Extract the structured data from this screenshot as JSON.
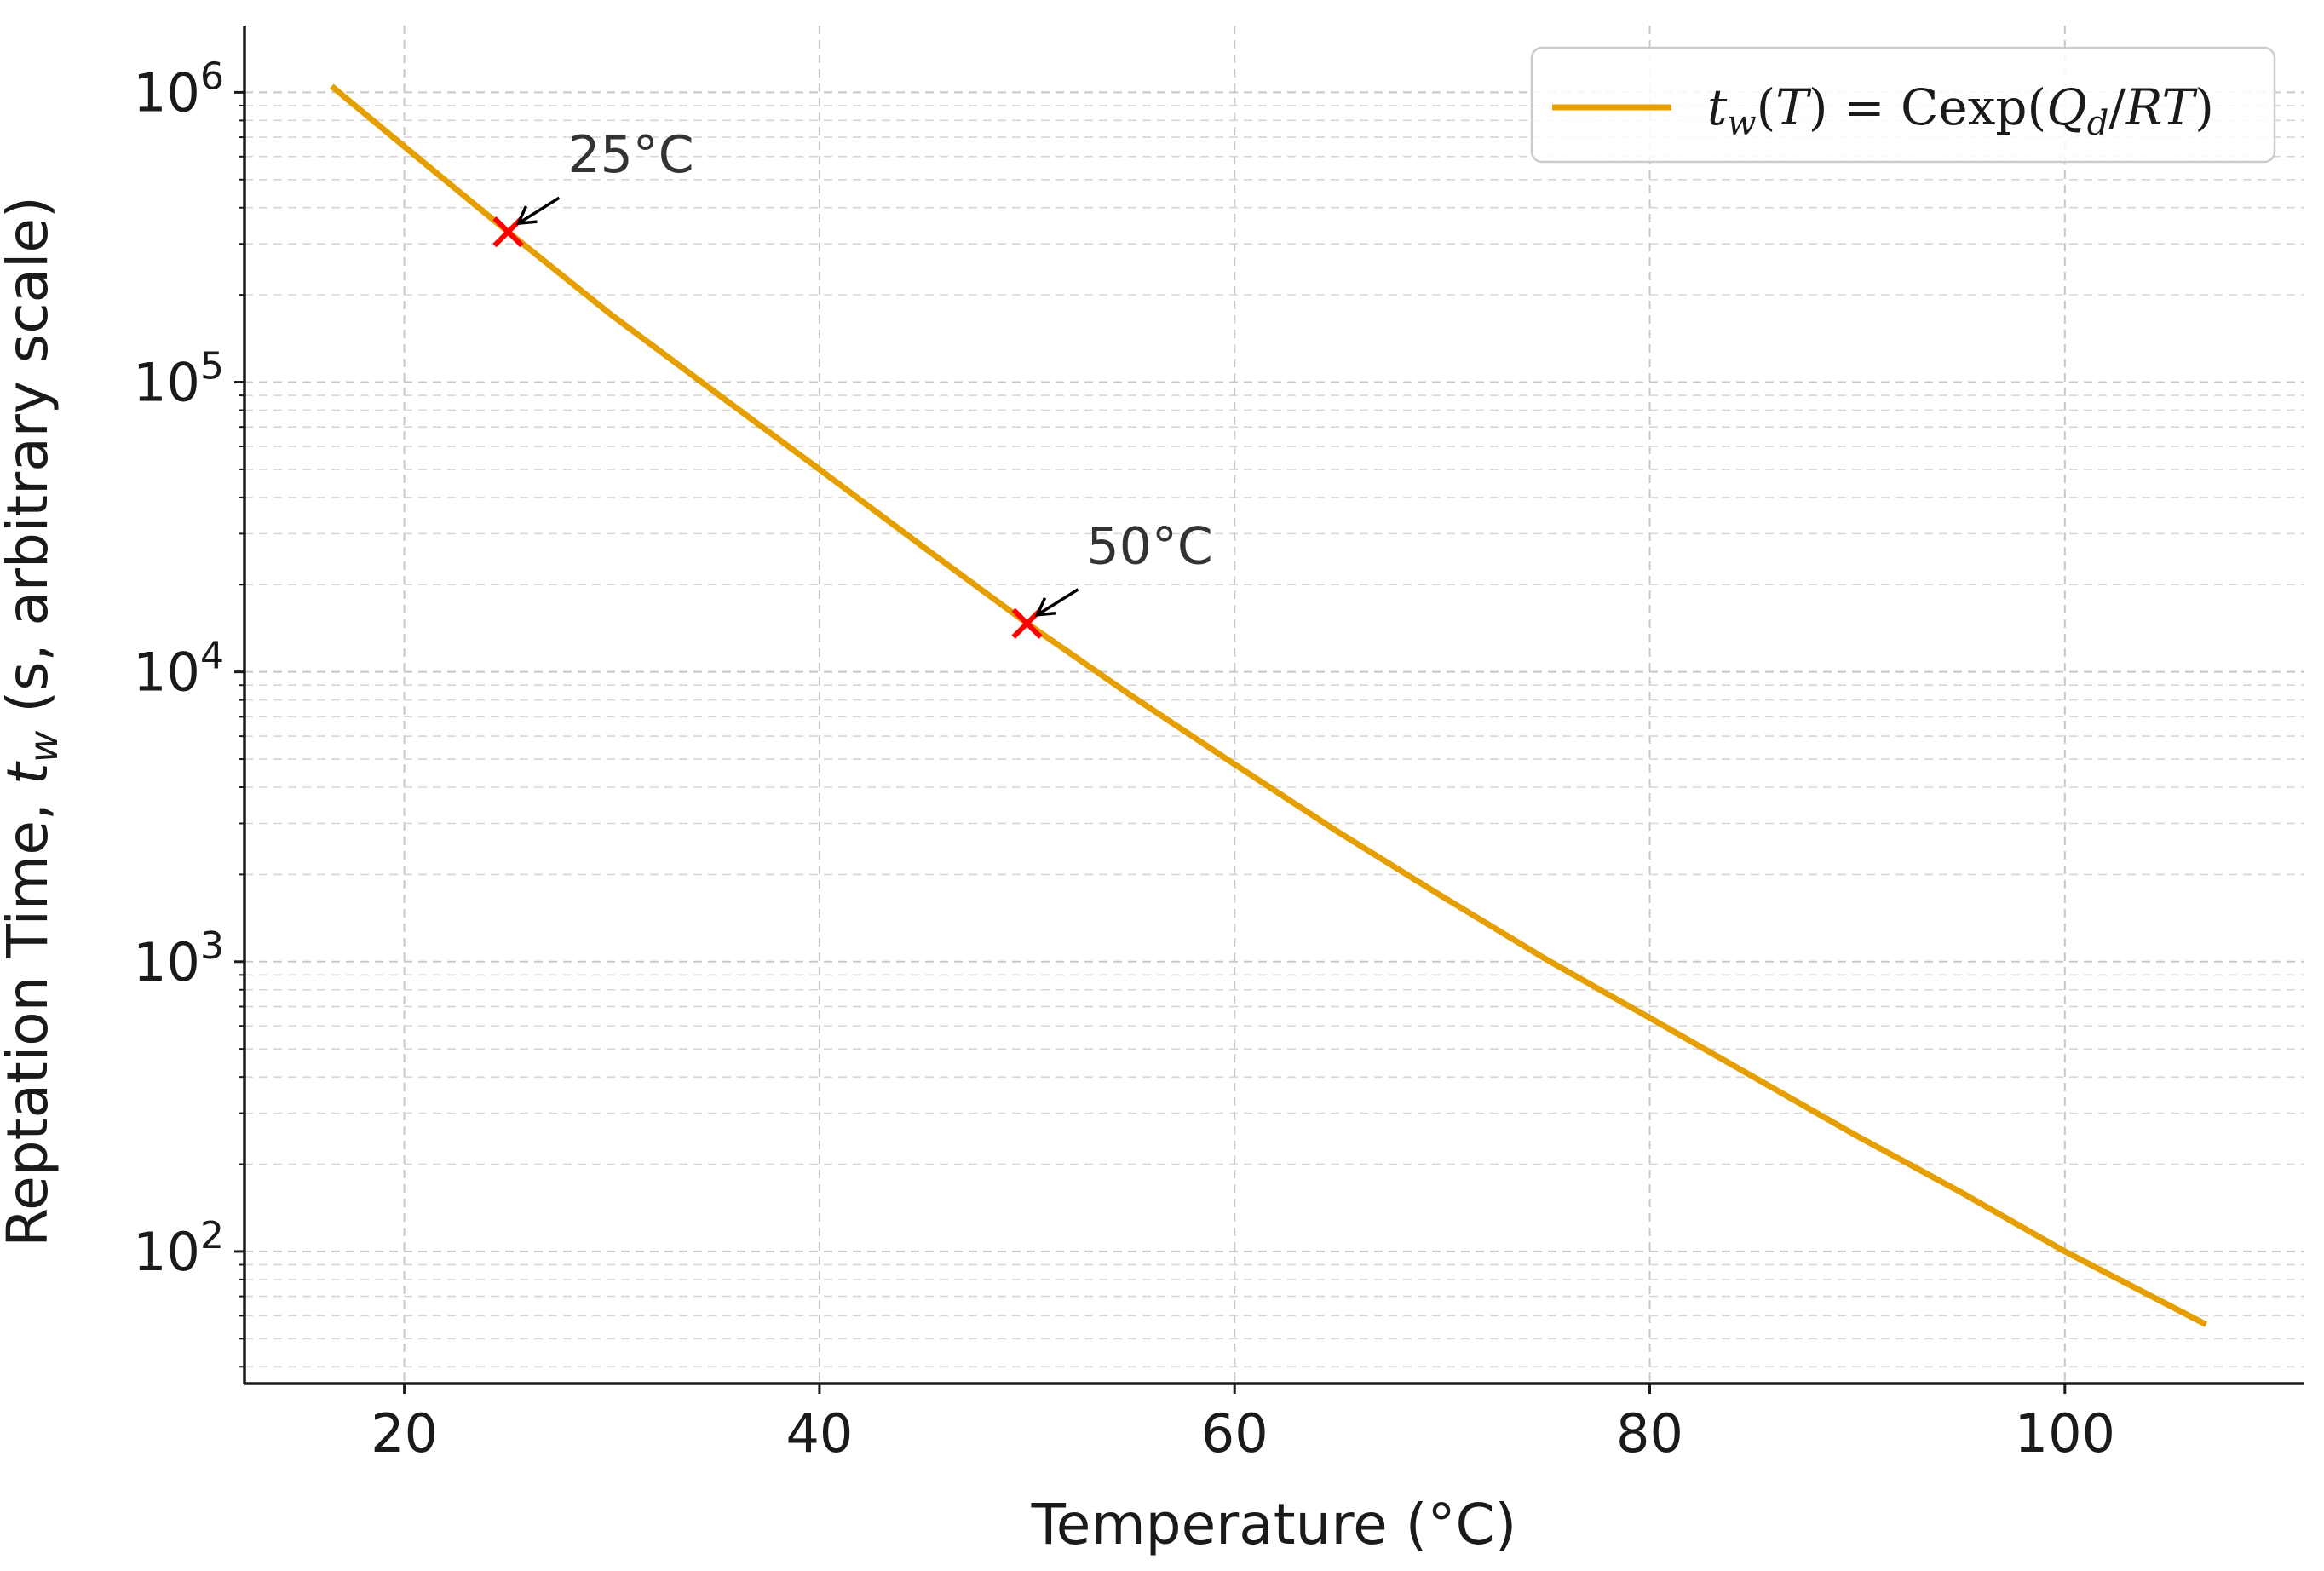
{
  "chart_data": {
    "type": "line",
    "title": "",
    "xlabel": "Temperature (°C)",
    "ylabel": "Reptation Time, t_w (s, arbitrary scale)",
    "ylabel_parts": {
      "before": "Reptation Time, ",
      "var": "t",
      "sub": "w",
      "after": " (s, arbitrary scale)"
    },
    "xlim": [
      12.3,
      111.5
    ],
    "ylim": [
      35,
      1700000
    ],
    "yscale": "log",
    "grid": true,
    "x_ticks": [
      20,
      40,
      60,
      80,
      100
    ],
    "x_tick_labels": [
      "20",
      "40",
      "60",
      "80",
      "100"
    ],
    "y_ticks": [
      100,
      1000,
      10000,
      100000,
      1000000
    ],
    "y_tick_labels": [
      {
        "base": "10",
        "exp": "2"
      },
      {
        "base": "10",
        "exp": "3"
      },
      {
        "base": "10",
        "exp": "4"
      },
      {
        "base": "10",
        "exp": "5"
      },
      {
        "base": "10",
        "exp": "6"
      }
    ],
    "series": [
      {
        "name": "t_w(T) = C exp(Q_d/RT)",
        "color": "#e69f00",
        "x": [
          16.5,
          20,
          25,
          30,
          35,
          40,
          45,
          50,
          55,
          60,
          65,
          70,
          75,
          80,
          85,
          90,
          95,
          100,
          106.8
        ],
        "y": [
          1050000,
          650000,
          330000,
          170000,
          92000,
          50000,
          27000,
          14700,
          8300,
          4800,
          2800,
          1680,
          1020,
          640,
          400,
          250,
          160,
          100,
          56
        ]
      }
    ],
    "legend": {
      "position": "top-right",
      "label_parts": [
        {
          "text": "t",
          "type": "var"
        },
        {
          "text": "w",
          "type": "sub"
        },
        {
          "text": "(",
          "type": "plain"
        },
        {
          "text": "T",
          "type": "var"
        },
        {
          "text": ") = C",
          "type": "plain"
        },
        {
          "text": "exp",
          "type": "roman"
        },
        {
          "text": "(",
          "type": "plain"
        },
        {
          "text": "Q",
          "type": "var"
        },
        {
          "text": "d",
          "type": "sub"
        },
        {
          "text": "/",
          "type": "plain"
        },
        {
          "text": "RT",
          "type": "var"
        },
        {
          "text": ")",
          "type": "plain"
        }
      ]
    },
    "markers": [
      {
        "x": 25,
        "y": 330000,
        "label": "25°C",
        "color": "#ff0000"
      },
      {
        "x": 50,
        "y": 14700,
        "label": "50°C",
        "color": "#ff0000"
      }
    ]
  }
}
